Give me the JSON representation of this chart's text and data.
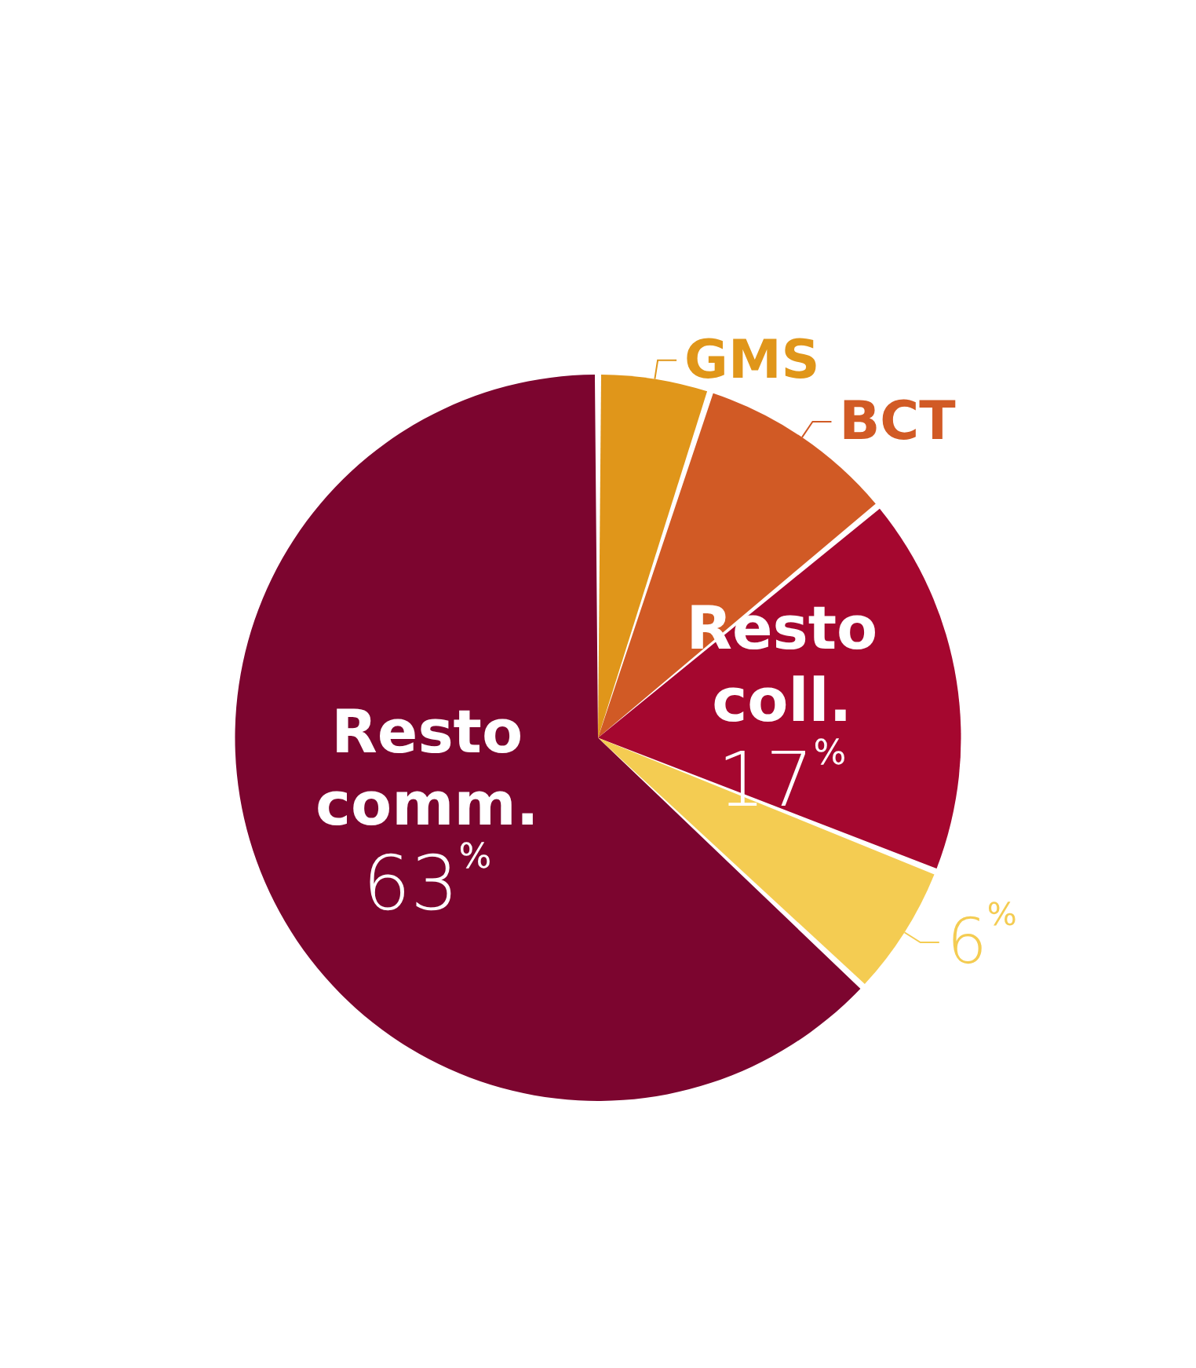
{
  "chart_data": {
    "type": "pie",
    "categories": [
      "GMS",
      "BCT",
      "Resto coll.",
      null,
      "Resto comm."
    ],
    "values": [
      5,
      9,
      17,
      6,
      63
    ],
    "value_labels": [
      null,
      null,
      "17%",
      "6%",
      "63%"
    ],
    "colors": [
      "#e0961a",
      "#d15a25",
      "#a5072f",
      "#f4cc52",
      "#7c052f"
    ],
    "legend": false
  }
}
